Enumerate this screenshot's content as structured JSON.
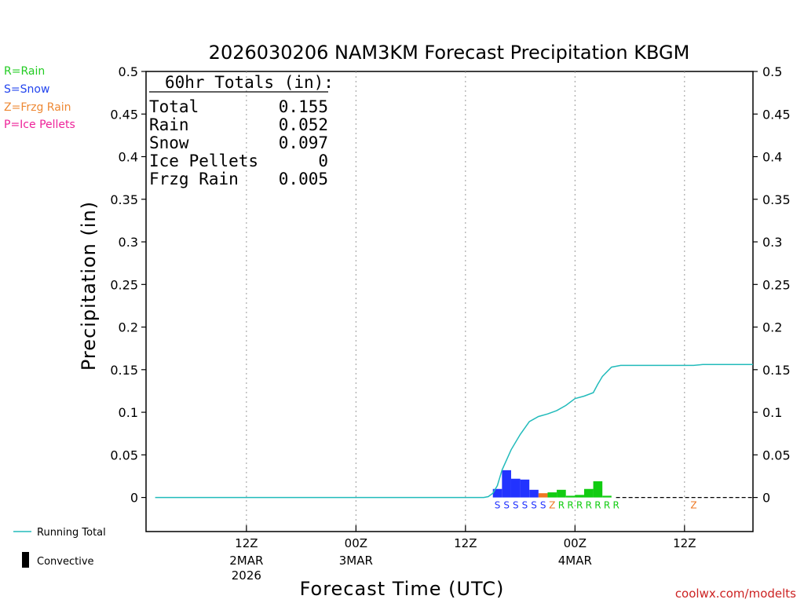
{
  "chart_data": {
    "type": "bar",
    "title": "2026030206 NAM3KM Forecast Precipitation KBGM",
    "ylabel": "Precipitation (in)",
    "xlabel": "Forecast Time (UTC)",
    "ylim": [
      -0.04,
      0.5
    ],
    "xlim_hours": [
      -5,
      61.5
    ],
    "yticks": [
      "0",
      "0.05",
      "0.1",
      "0.15",
      "0.2",
      "0.25",
      "0.3",
      "0.35",
      "0.4",
      "0.45",
      "0.5"
    ],
    "ytick_values": [
      0,
      0.05,
      0.1,
      0.15,
      0.2,
      0.25,
      0.3,
      0.35,
      0.4,
      0.45,
      0.5
    ],
    "xticks": [
      {
        "hour": 6,
        "label": "12Z",
        "date": "2MAR",
        "year": "2026"
      },
      {
        "hour": 18,
        "label": "00Z",
        "date": "3MAR",
        "year": ""
      },
      {
        "hour": 30,
        "label": "12Z",
        "date": "",
        "year": ""
      },
      {
        "hour": 42,
        "label": "00Z",
        "date": "4MAR",
        "year": ""
      },
      {
        "hour": 54,
        "label": "12Z",
        "date": "",
        "year": ""
      }
    ],
    "bars": [
      {
        "hour": 33.5,
        "value": 0.01,
        "type": "S"
      },
      {
        "hour": 34.5,
        "value": 0.032,
        "type": "S"
      },
      {
        "hour": 35.5,
        "value": 0.022,
        "type": "S"
      },
      {
        "hour": 36.5,
        "value": 0.021,
        "type": "S"
      },
      {
        "hour": 37.5,
        "value": 0.009,
        "type": "S"
      },
      {
        "hour": 38.5,
        "value": 0.005,
        "type": "Z"
      },
      {
        "hour": 39.5,
        "value": 0.006,
        "type": "R"
      },
      {
        "hour": 40.5,
        "value": 0.009,
        "type": "R"
      },
      {
        "hour": 41.5,
        "value": 0.002,
        "type": "R"
      },
      {
        "hour": 42.5,
        "value": 0.003,
        "type": "R"
      },
      {
        "hour": 43.5,
        "value": 0.01,
        "type": "R"
      },
      {
        "hour": 44.5,
        "value": 0.019,
        "type": "R"
      },
      {
        "hour": 45.5,
        "value": 0.002,
        "type": "R"
      }
    ],
    "type_markers": [
      {
        "hour": 33.5,
        "type": "S"
      },
      {
        "hour": 34.5,
        "type": "S"
      },
      {
        "hour": 35.5,
        "type": "S"
      },
      {
        "hour": 36.5,
        "type": "S"
      },
      {
        "hour": 37.5,
        "type": "S"
      },
      {
        "hour": 38.5,
        "type": "S"
      },
      {
        "hour": 39.5,
        "type": "Z"
      },
      {
        "hour": 40.5,
        "type": "R"
      },
      {
        "hour": 41.5,
        "type": "R"
      },
      {
        "hour": 42.5,
        "type": "R"
      },
      {
        "hour": 43.5,
        "type": "R"
      },
      {
        "hour": 44.5,
        "type": "R"
      },
      {
        "hour": 45.5,
        "type": "R"
      },
      {
        "hour": 46.5,
        "type": "R"
      },
      {
        "hour": 55.0,
        "type": "Z"
      }
    ],
    "running_total": {
      "hours": [
        -4,
        32,
        32.5,
        33,
        33.5,
        34,
        35,
        36,
        37,
        38,
        39,
        40,
        41,
        42,
        43,
        44,
        44.5,
        45,
        46,
        47,
        48,
        49,
        50,
        51,
        52,
        53,
        54,
        55,
        56,
        57,
        58,
        59,
        60,
        61.5
      ],
      "values": [
        0,
        0,
        0.001,
        0.005,
        0.014,
        0.032,
        0.056,
        0.074,
        0.089,
        0.095,
        0.098,
        0.102,
        0.108,
        0.116,
        0.119,
        0.123,
        0.133,
        0.142,
        0.153,
        0.155,
        0.155,
        0.155,
        0.155,
        0.155,
        0.155,
        0.155,
        0.155,
        0.155,
        0.156,
        0.156,
        0.156,
        0.156,
        0.156,
        0.156
      ]
    },
    "dashed_zero_from_hour": 46.5,
    "totals_box": {
      "header": "60hr Totals (in):",
      "rows": [
        {
          "label": "Total",
          "value": "0.155"
        },
        {
          "label": "Rain",
          "value": "0.052"
        },
        {
          "label": "Snow",
          "value": "0.097"
        },
        {
          "label": "Ice Pellets",
          "value": "0"
        },
        {
          "label": "Frzg Rain",
          "value": "0.005"
        }
      ]
    }
  },
  "legend_types": [
    {
      "key": "R",
      "label": "R=Rain",
      "color": "#22cc22"
    },
    {
      "key": "S",
      "label": "S=Snow",
      "color": "#2244ee"
    },
    {
      "key": "Z",
      "label": "Z=Frzg Rain",
      "color": "#ee8833"
    },
    {
      "key": "P",
      "label": "P=Ice Pellets",
      "color": "#ee2299"
    }
  ],
  "legend_bottom": {
    "running_total": "Running Total",
    "convective": "Convective"
  },
  "colors": {
    "R": "#11cc11",
    "S": "#2233ff",
    "Z": "#ee7722",
    "P": "#ee2299",
    "running_total": "#22bbbb",
    "grid": "#999999",
    "credit": "#cc2222"
  },
  "credit": "coolwx.com/modelts"
}
